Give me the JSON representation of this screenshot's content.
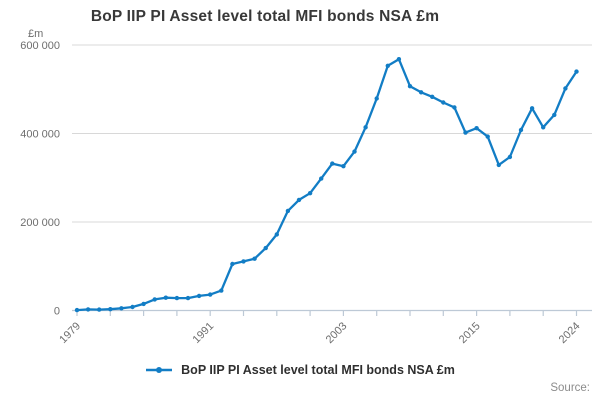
{
  "header": {
    "title": "BoP IIP PI Asset level total MFI bonds NSA £m"
  },
  "legend": {
    "label": "BoP IIP PI Asset level total MFI bonds NSA £m"
  },
  "footer": {
    "source_label": "Source:"
  },
  "colors": {
    "line": "#127DC5",
    "grid": "#d8d8d8",
    "axis": "#bdc9d6",
    "axis_text": "#6e6e6e"
  },
  "chart_data": {
    "type": "line",
    "title": "BoP IIP PI Asset level total MFI bonds NSA £m",
    "unit_label": "£m",
    "xlabel": "",
    "ylabel": "£m",
    "xlim": [
      1979,
      2024
    ],
    "ylim": [
      0,
      600000
    ],
    "grid": "horizontal-on",
    "legend_position": "bottom",
    "x_tick_years": [
      1979,
      1982,
      1985,
      1988,
      1991,
      1994,
      1997,
      2000,
      2003,
      2006,
      2009,
      2012,
      2015,
      2018,
      2021,
      2024
    ],
    "x_labeled_ticks": [
      "1979",
      "1991",
      "2003",
      "2015",
      "2024"
    ],
    "y_ticks": [
      {
        "value": 0,
        "label": "0"
      },
      {
        "value": 200000,
        "label": "200 000"
      },
      {
        "value": 400000,
        "label": "400 000"
      },
      {
        "value": 600000,
        "label": "600 000"
      }
    ],
    "series": [
      {
        "name": "BoP IIP PI Asset level total MFI bonds NSA £m",
        "color": "#127DC5",
        "marker": "dot",
        "x": [
          1979,
          1980,
          1981,
          1982,
          1983,
          1984,
          1985,
          1986,
          1987,
          1988,
          1989,
          1990,
          1991,
          1992,
          1993,
          1994,
          1995,
          1996,
          1997,
          1998,
          1999,
          2000,
          2001,
          2002,
          2003,
          2004,
          2005,
          2006,
          2007,
          2008,
          2009,
          2010,
          2011,
          2012,
          2013,
          2014,
          2015,
          2016,
          2017,
          2018,
          2019,
          2020,
          2021,
          2022,
          2023,
          2024
        ],
        "values": [
          1000,
          2500,
          2000,
          3000,
          5000,
          8000,
          15000,
          25000,
          29000,
          28000,
          28000,
          33000,
          36000,
          45000,
          105000,
          111000,
          117000,
          141000,
          172000,
          225000,
          250000,
          265000,
          298000,
          332000,
          326000,
          359000,
          414000,
          479000,
          553000,
          568000,
          507000,
          493000,
          483000,
          470000,
          459000,
          402000,
          412000,
          393000,
          329000,
          347000,
          408000,
          457000,
          414000,
          442000,
          502000,
          540000
        ]
      }
    ]
  }
}
